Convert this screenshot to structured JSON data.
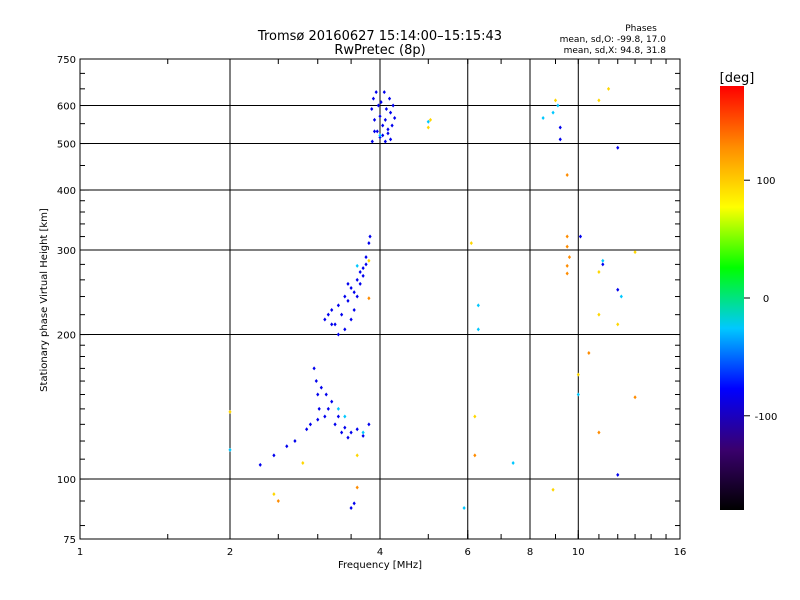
{
  "chart_data": {
    "type": "scatter",
    "title": "Tromsø 20160627 15:14:00–15:15:43",
    "subtitle": "RwPretec (8p)",
    "xlabel": "Frequency [MHz]",
    "ylabel": "Stationary phase Virtual Height [km]",
    "xscale": "log2",
    "yscale": "log",
    "xlim": [
      1,
      16
    ],
    "ylim": [
      75,
      750
    ],
    "x_ticks": [
      1,
      2,
      4,
      6,
      8,
      10,
      16
    ],
    "y_ticks": [
      75,
      100,
      200,
      300,
      400,
      500,
      600,
      750
    ],
    "grid_x": [
      2,
      4,
      6,
      8,
      10
    ],
    "grid_y": [
      100,
      200,
      300,
      400,
      500,
      600
    ],
    "grid": true,
    "stats": {
      "heading": "Phases",
      "line_o": "mean, sd,O: -99.8, 17.0",
      "line_x": "mean, sd,X:  94.8, 31.8"
    },
    "colorbar": {
      "label": "[deg]",
      "range": [
        -180,
        180
      ],
      "ticks": [
        100,
        0,
        -100
      ],
      "colors": [
        "#000000",
        "#3a006e",
        "#0000ff",
        "#00c8ff",
        "#00ff00",
        "#ffff00",
        "#ff8c00",
        "#ff0000"
      ]
    },
    "series": [
      {
        "values": [
          [
            3.85,
            590
          ],
          [
            3.88,
            620
          ],
          [
            3.9,
            560
          ],
          [
            3.93,
            640
          ],
          [
            3.95,
            530
          ],
          [
            3.97,
            600
          ],
          [
            4.0,
            570
          ],
          [
            4.02,
            610
          ],
          [
            4.05,
            520
          ],
          [
            4.08,
            640
          ],
          [
            4.1,
            560
          ],
          [
            4.12,
            590
          ],
          [
            4.15,
            535
          ],
          [
            4.18,
            620
          ],
          [
            4.2,
            580
          ],
          [
            4.23,
            545
          ],
          [
            4.25,
            600
          ],
          [
            4.28,
            565
          ],
          [
            3.86,
            505
          ],
          [
            3.9,
            530
          ],
          [
            4.0,
            515
          ],
          [
            4.05,
            545
          ],
          [
            4.1,
            505
          ],
          [
            4.15,
            525
          ],
          [
            4.2,
            510
          ],
          [
            3.1,
            215
          ],
          [
            3.15,
            220
          ],
          [
            3.2,
            225
          ],
          [
            3.25,
            210
          ],
          [
            3.3,
            230
          ],
          [
            3.35,
            220
          ],
          [
            3.4,
            240
          ],
          [
            3.45,
            235
          ],
          [
            3.5,
            250
          ],
          [
            3.55,
            245
          ],
          [
            3.6,
            260
          ],
          [
            3.65,
            270
          ],
          [
            3.7,
            275
          ],
          [
            3.75,
            290
          ],
          [
            3.8,
            310
          ],
          [
            3.82,
            320
          ],
          [
            3.5,
            215
          ],
          [
            3.55,
            225
          ],
          [
            3.6,
            240
          ],
          [
            3.65,
            255
          ],
          [
            3.7,
            265
          ],
          [
            3.4,
            205
          ],
          [
            3.3,
            200
          ],
          [
            3.2,
            210
          ],
          [
            3.45,
            255
          ],
          [
            3.75,
            280
          ],
          [
            2.95,
            170
          ],
          [
            2.98,
            160
          ],
          [
            3.0,
            150
          ],
          [
            3.02,
            140
          ],
          [
            3.05,
            155
          ],
          [
            3.1,
            135
          ],
          [
            3.15,
            140
          ],
          [
            3.2,
            145
          ],
          [
            3.25,
            130
          ],
          [
            3.3,
            135
          ],
          [
            3.35,
            125
          ],
          [
            3.4,
            128
          ],
          [
            3.45,
            122
          ],
          [
            3.5,
            125
          ],
          [
            3.6,
            127
          ],
          [
            3.7,
            123
          ],
          [
            3.8,
            130
          ],
          [
            3.0,
            133
          ],
          [
            3.12,
            150
          ],
          [
            2.3,
            107
          ],
          [
            2.45,
            112
          ],
          [
            2.6,
            117
          ],
          [
            2.7,
            120
          ],
          [
            2.85,
            127
          ],
          [
            2.9,
            130
          ],
          [
            3.5,
            87
          ],
          [
            3.55,
            89
          ],
          [
            9.2,
            540
          ],
          [
            9.2,
            510
          ],
          [
            12.0,
            490
          ],
          [
            12.0,
            248
          ],
          [
            10.1,
            320
          ],
          [
            11.2,
            280
          ],
          [
            12.0,
            102
          ]
        ]
      },
      {
        "values": [
          [
            2.0,
            115
          ],
          [
            3.6,
            278
          ],
          [
            4.0,
            520
          ],
          [
            5.0,
            555
          ],
          [
            8.5,
            565
          ],
          [
            8.9,
            580
          ],
          [
            9.1,
            600
          ],
          [
            10.0,
            150
          ],
          [
            11.2,
            285
          ],
          [
            6.3,
            230
          ],
          [
            6.3,
            205
          ],
          [
            7.4,
            108
          ],
          [
            5.9,
            87
          ],
          [
            3.7,
            125
          ],
          [
            3.4,
            135
          ],
          [
            12.2,
            240
          ],
          [
            3.3,
            140
          ]
        ]
      },
      {
        "values": [
          [
            2.0,
            138
          ],
          [
            2.45,
            93
          ],
          [
            2.8,
            108
          ],
          [
            3.6,
            112
          ],
          [
            3.8,
            285
          ],
          [
            5.05,
            560
          ],
          [
            5.0,
            540
          ],
          [
            6.2,
            135
          ],
          [
            8.9,
            95
          ],
          [
            9.0,
            615
          ],
          [
            11.0,
            615
          ],
          [
            11.5,
            650
          ],
          [
            11.0,
            270
          ],
          [
            12.0,
            210
          ],
          [
            11.0,
            220
          ],
          [
            10.0,
            165
          ],
          [
            13.0,
            297
          ],
          [
            6.1,
            310
          ]
        ]
      },
      {
        "values": [
          [
            2.5,
            90
          ],
          [
            3.6,
            96
          ],
          [
            3.8,
            238
          ],
          [
            6.2,
            112
          ],
          [
            9.5,
            430
          ],
          [
            9.5,
            320
          ],
          [
            9.5,
            305
          ],
          [
            9.6,
            290
          ],
          [
            9.5,
            278
          ],
          [
            9.5,
            268
          ],
          [
            11.0,
            125
          ],
          [
            13.0,
            148
          ],
          [
            10.5,
            183
          ]
        ]
      }
    ]
  }
}
